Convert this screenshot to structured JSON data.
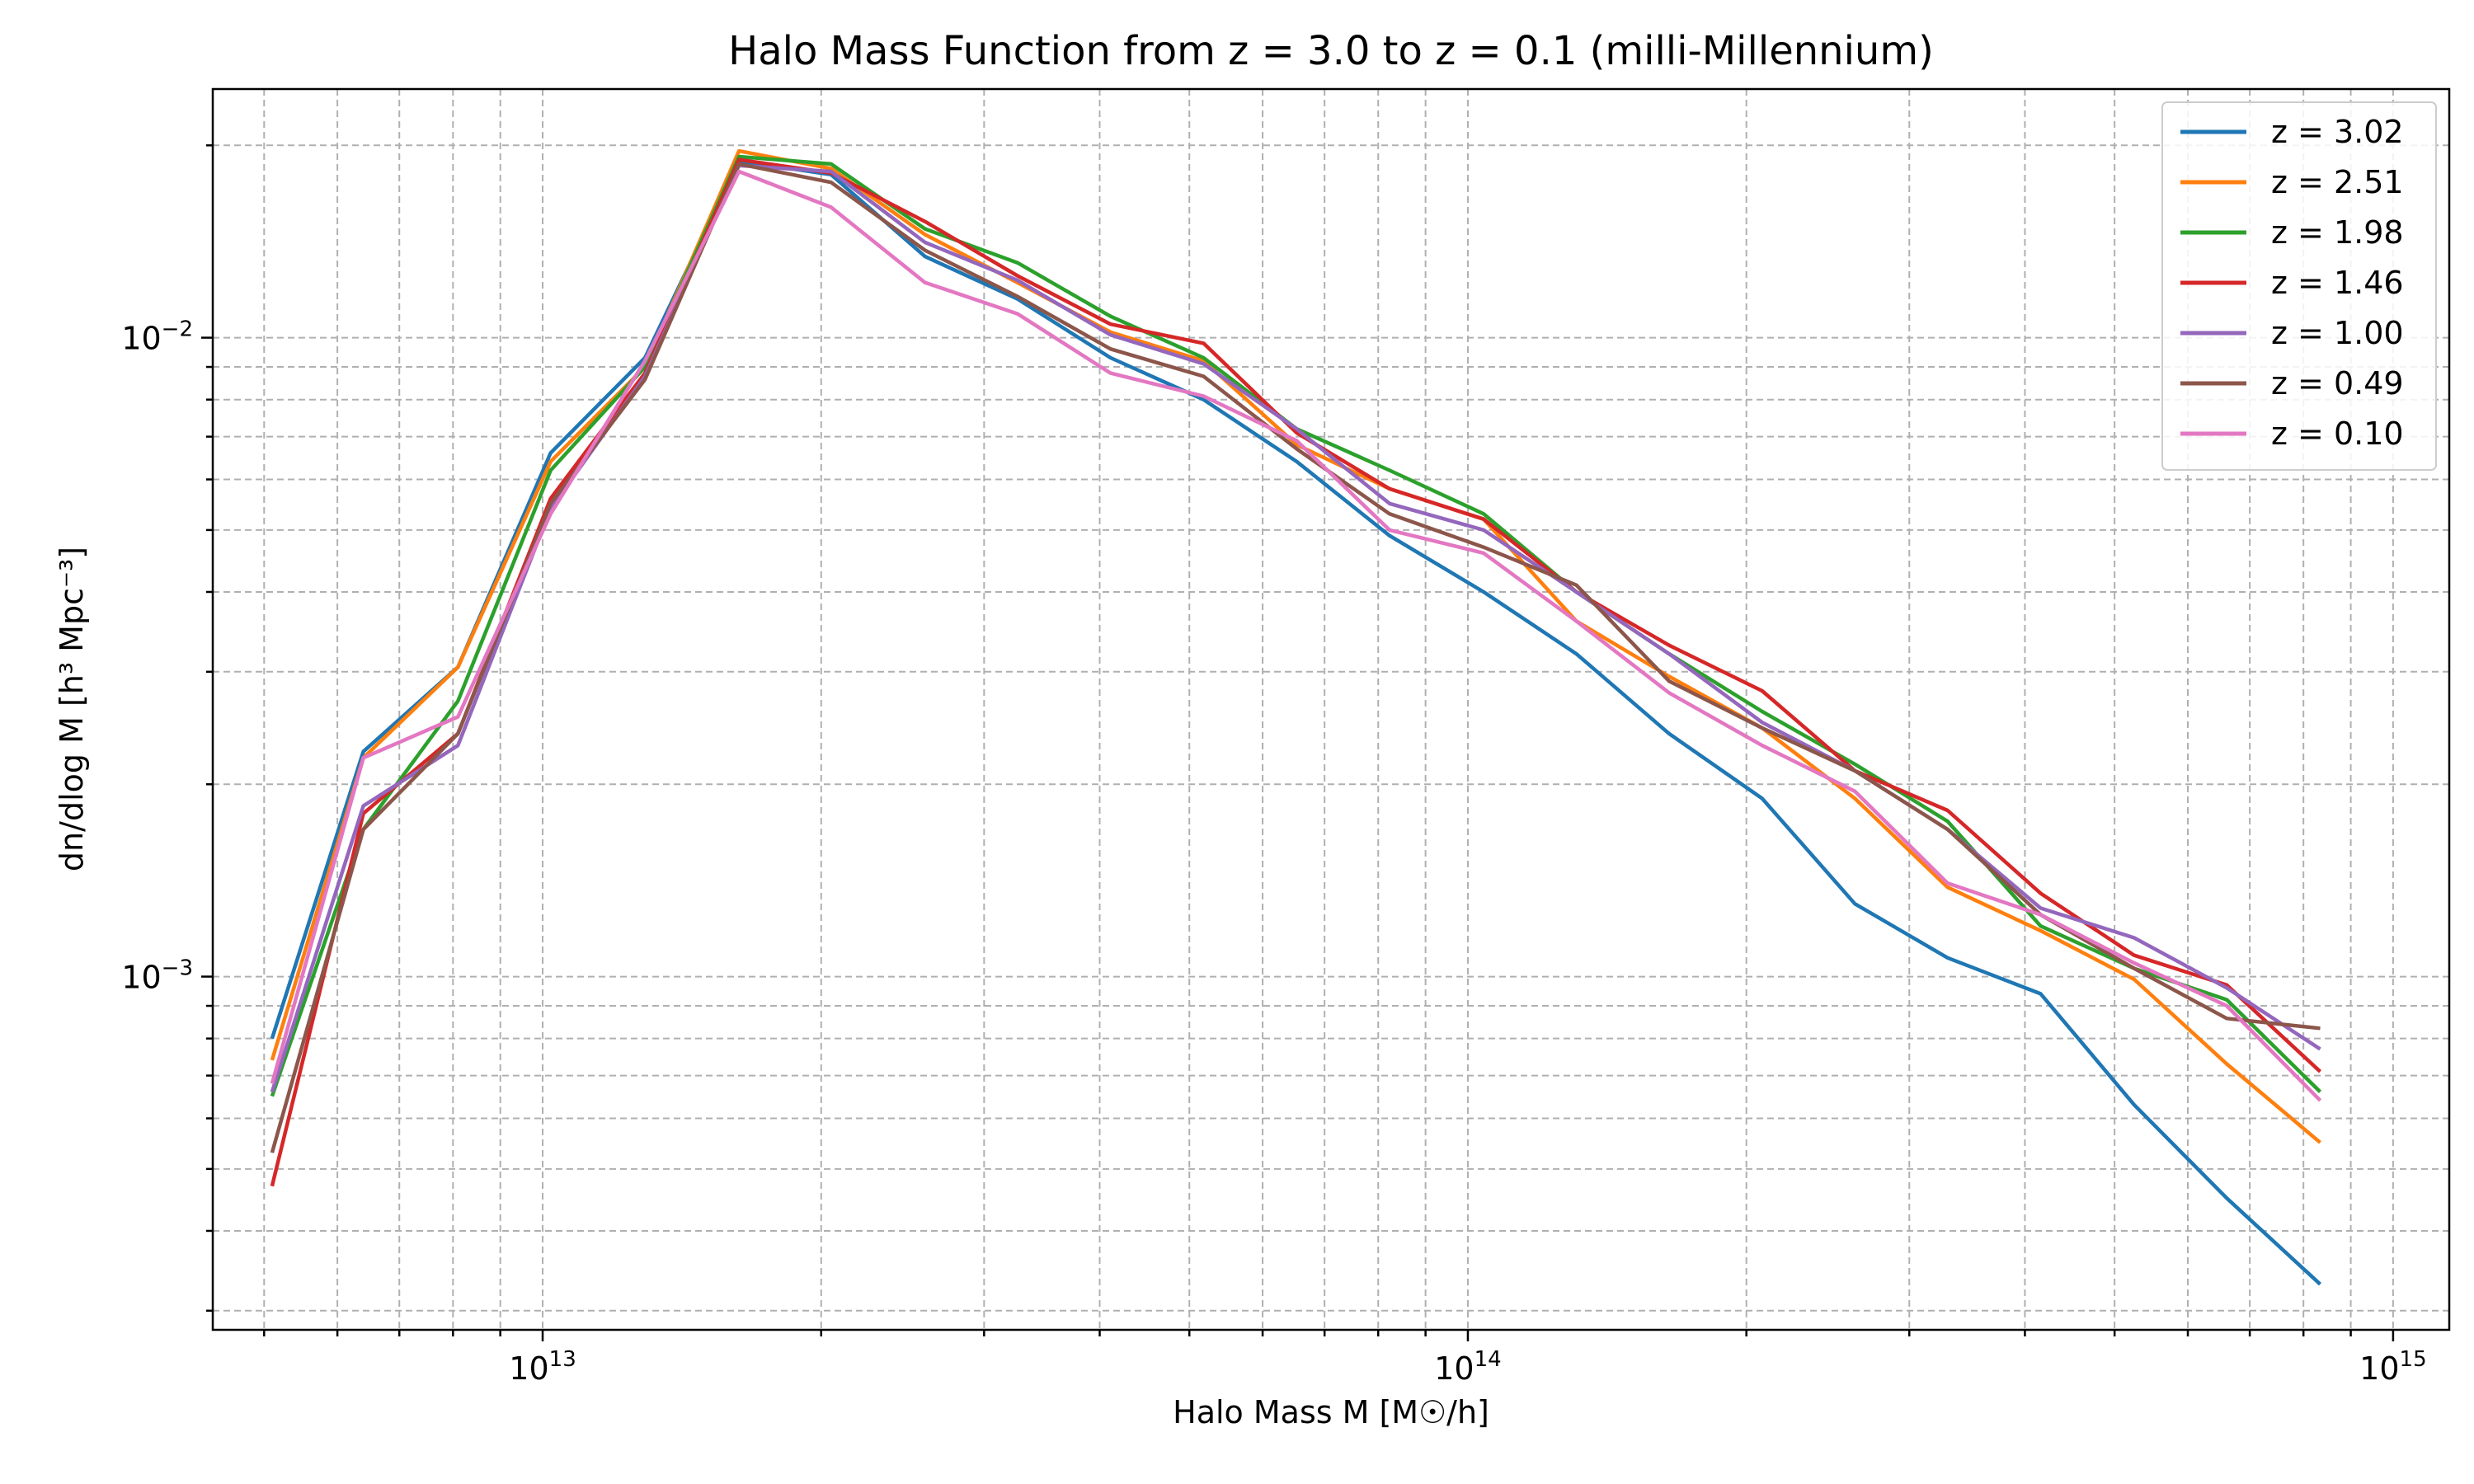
{
  "chart_data": {
    "type": "line",
    "title": "Halo Mass Function from z = 3.0 to z = 0.1 (milli-Millennium)",
    "xlabel": "Halo Mass M [M☉/h]",
    "ylabel": "dn/dlog M [h³ Mpc⁻³]",
    "xscale": "log",
    "yscale": "log",
    "xlim": [
      4400000000000.0,
      1150000000000000.0
    ],
    "ylim": [
      0.00028,
      0.0245
    ],
    "xticks": [
      {
        "base": "10",
        "exp": "13",
        "value": 10000000000000.0
      },
      {
        "base": "10",
        "exp": "14",
        "value": 100000000000000.0
      },
      {
        "base": "10",
        "exp": "15",
        "value": 1000000000000000.0
      }
    ],
    "yticks": [
      {
        "base": "10",
        "exp": "−3",
        "value": 0.001
      },
      {
        "base": "10",
        "exp": "−2",
        "value": 0.01
      }
    ],
    "grid": true,
    "legend_position": "top-right",
    "x": [
      5100000000000.0,
      6400000000000.0,
      8100000000000.0,
      10200000000000.0,
      12900000000000.0,
      16300000000000.0,
      20500000000000.0,
      25900000000000.0,
      32600000000000.0,
      41100000000000.0,
      51800000000000.0,
      65300000000000.0,
      82300000000000.0,
      104000000000000.0,
      131000000000000.0,
      165000000000000.0,
      208000000000000.0,
      262000000000000.0,
      330000000000000.0,
      416000000000000.0,
      525000000000000.0,
      661000000000000.0,
      834000000000000.0
    ],
    "series": [
      {
        "name": "z = 3.02",
        "color": "#1f77b4",
        "values": [
          0.0008,
          0.00225,
          0.00305,
          0.0066,
          0.0093,
          0.0189,
          0.018,
          0.0134,
          0.0115,
          0.0093,
          0.008,
          0.0064,
          0.0049,
          0.004,
          0.0032,
          0.0024,
          0.0019,
          0.0013,
          0.00107,
          0.00094,
          0.00063,
          0.00045,
          0.00033
        ]
      },
      {
        "name": "z = 2.51",
        "color": "#ff7f0e",
        "values": [
          0.00074,
          0.0022,
          0.00305,
          0.0064,
          0.009,
          0.0196,
          0.0184,
          0.0145,
          0.0122,
          0.0102,
          0.0092,
          0.0068,
          0.0058,
          0.0052,
          0.0036,
          0.00295,
          0.00245,
          0.0019,
          0.00138,
          0.00118,
          0.00099,
          0.00073,
          0.00055
        ]
      },
      {
        "name": "z = 1.98",
        "color": "#2ca02c",
        "values": [
          0.00065,
          0.0017,
          0.0027,
          0.0062,
          0.009,
          0.0192,
          0.0187,
          0.0148,
          0.0131,
          0.0108,
          0.0093,
          0.0072,
          0.0062,
          0.0053,
          0.004,
          0.0032,
          0.0026,
          0.00215,
          0.00175,
          0.0012,
          0.00103,
          0.00092,
          0.00066
        ]
      },
      {
        "name": "z = 1.46",
        "color": "#d62728",
        "values": [
          0.00047,
          0.0018,
          0.0024,
          0.0056,
          0.0088,
          0.019,
          0.0181,
          0.0152,
          0.0125,
          0.0105,
          0.0098,
          0.0071,
          0.0058,
          0.0052,
          0.004,
          0.0033,
          0.0028,
          0.0021,
          0.00182,
          0.00135,
          0.00108,
          0.00097,
          0.00071
        ]
      },
      {
        "name": "z = 1.00",
        "color": "#9467bd",
        "values": [
          0.00066,
          0.00185,
          0.0023,
          0.0054,
          0.0087,
          0.0186,
          0.0182,
          0.0141,
          0.0123,
          0.0101,
          0.0091,
          0.0072,
          0.0055,
          0.005,
          0.004,
          0.0032,
          0.0025,
          0.0021,
          0.0017,
          0.00128,
          0.00115,
          0.00096,
          0.00077
        ]
      },
      {
        "name": "z = 0.49",
        "color": "#8c564b",
        "values": [
          0.00053,
          0.0017,
          0.0024,
          0.0055,
          0.0086,
          0.0187,
          0.0175,
          0.0137,
          0.0116,
          0.0096,
          0.0087,
          0.0067,
          0.0053,
          0.0047,
          0.0041,
          0.0029,
          0.00245,
          0.0021,
          0.0017,
          0.00125,
          0.00103,
          0.00086,
          0.00083
        ]
      },
      {
        "name": "z = 0.10",
        "color": "#e377c2",
        "values": [
          0.00068,
          0.0022,
          0.00255,
          0.0053,
          0.0092,
          0.0182,
          0.016,
          0.0122,
          0.0109,
          0.0088,
          0.0081,
          0.0069,
          0.005,
          0.0046,
          0.0036,
          0.00278,
          0.0023,
          0.00195,
          0.0014,
          0.00125,
          0.00105,
          0.0009,
          0.00064
        ]
      }
    ]
  }
}
